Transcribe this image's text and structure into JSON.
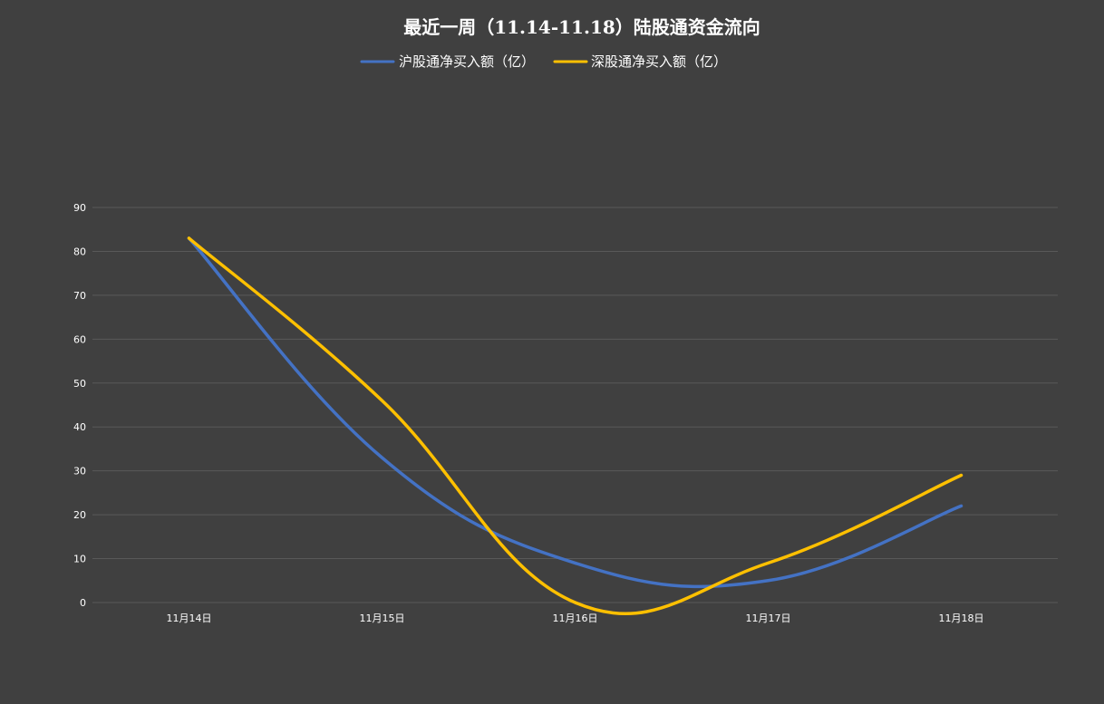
{
  "chart_data": {
    "type": "line",
    "title": "最近一周（11.14-11.18）陆股通资金流向",
    "categories": [
      "11月14日",
      "11月15日",
      "11月16日",
      "11月17日",
      "11月18日"
    ],
    "series": [
      {
        "name": "沪股通净买入额（亿）",
        "color": "#4472C4",
        "values": [
          83,
          33,
          9,
          5,
          22
        ]
      },
      {
        "name": "深股通净买入额（亿）",
        "color": "#FFC000",
        "values": [
          83,
          46,
          0,
          9,
          29
        ]
      }
    ],
    "ylim": [
      0,
      90
    ],
    "yticks": [
      0,
      10,
      20,
      30,
      40,
      50,
      60,
      70,
      80,
      90
    ],
    "grid": true,
    "smooth": true,
    "legend_position": "top"
  },
  "colors": {
    "background": "#404040",
    "gridline": "#595959",
    "text": "#ffffff"
  }
}
